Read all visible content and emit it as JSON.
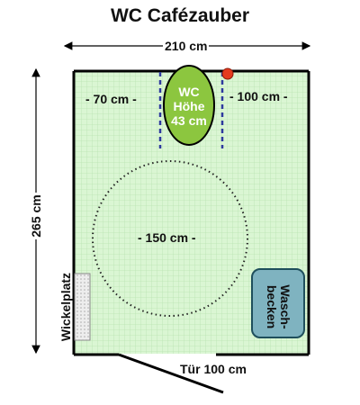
{
  "title": "WC Cafézauber",
  "dimensions": {
    "width": "210 cm",
    "height": "265 cm",
    "left_clearance": "- 70 cm -",
    "right_clearance": "- 100 cm -",
    "turning_circle": "- 150 cm -",
    "door": "Tür 100 cm"
  },
  "toilet": {
    "line1": "WC",
    "line2": "Höhe",
    "line3": "43 cm"
  },
  "changing_table": "Wickelplatz",
  "sink": {
    "line1": "Wasch-",
    "line2": "becken"
  },
  "colors": {
    "floor": "#daf6d3",
    "grid": "#b9e3b1",
    "wall": "#000000",
    "toilet": "#8cc63f",
    "grab_bar": "#2e3a9e",
    "flush_button": "#e53a1e",
    "sink": "#7fb3c0",
    "changing_table": "#ededed"
  }
}
